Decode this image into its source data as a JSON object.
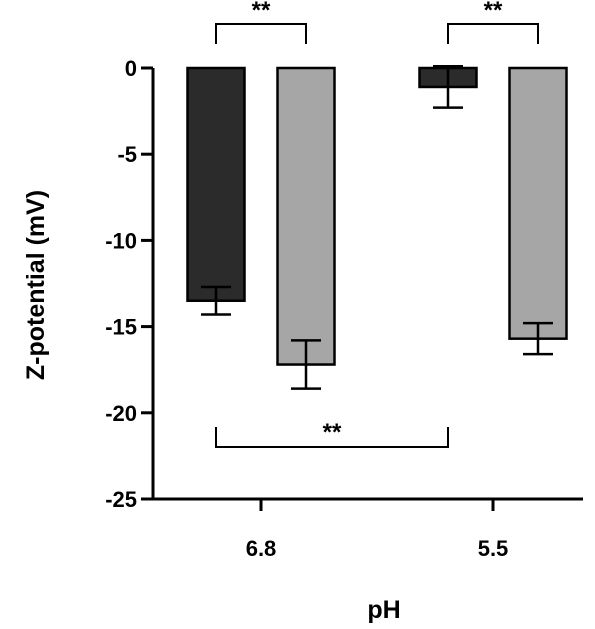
{
  "chart_data": {
    "type": "bar",
    "title": "",
    "xlabel": "pH",
    "ylabel": "Z-potential (mV)",
    "categories": [
      "6.8",
      "5.5"
    ],
    "ylim": [
      -25,
      0
    ],
    "yticks": [
      "0",
      "-5",
      "-10",
      "-15",
      "-20",
      "-25"
    ],
    "grid": false,
    "legend": "none",
    "series": [
      {
        "values": [
          -13.5,
          -1.1
        ],
        "errors": [
          0.8,
          1.2
        ],
        "color": "#2b2b2b"
      },
      {
        "values": [
          -17.2,
          -15.7
        ],
        "errors": [
          1.4,
          0.9
        ],
        "color": "#a6a6a6"
      }
    ],
    "significance": [
      {
        "label": "**",
        "from": [
          0,
          0
        ],
        "to": [
          0,
          1
        ],
        "position": "top"
      },
      {
        "label": "**",
        "from": [
          1,
          0
        ],
        "to": [
          1,
          1
        ],
        "position": "top"
      },
      {
        "label": "**",
        "from": [
          0,
          0
        ],
        "to": [
          1,
          0
        ],
        "position": "bottom"
      }
    ]
  }
}
